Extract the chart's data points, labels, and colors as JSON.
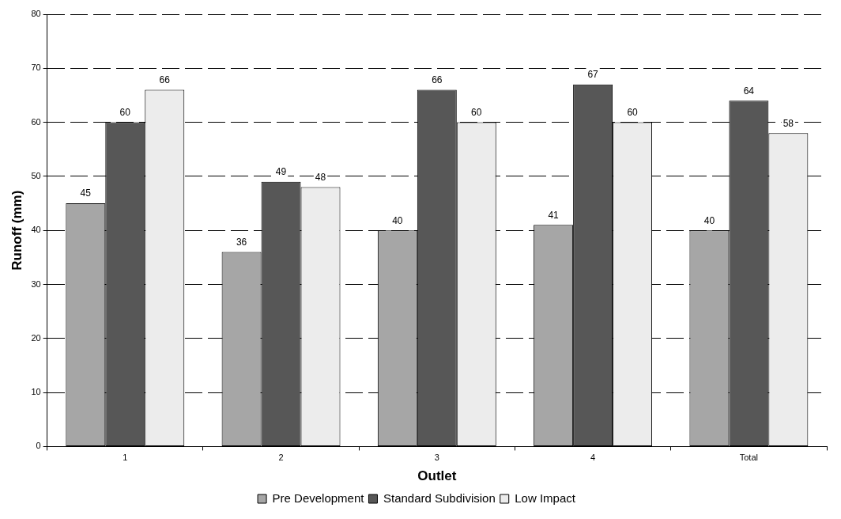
{
  "chart_data": {
    "type": "bar",
    "xlabel": "Outlet",
    "ylabel": "Runoff (mm)",
    "categories": [
      "1",
      "2",
      "3",
      "4",
      "Total"
    ],
    "series": [
      {
        "name": "Pre Development",
        "color": "#a6a6a6",
        "values": [
          45,
          36,
          40,
          41,
          40
        ]
      },
      {
        "name": "Standard Subdivision",
        "color": "#575757",
        "values": [
          60,
          49,
          66,
          67,
          64
        ]
      },
      {
        "name": "Low Impact",
        "color": "#ececec",
        "values": [
          66,
          48,
          60,
          60,
          58
        ]
      }
    ],
    "ylim": [
      0,
      80
    ],
    "yticks": [
      0,
      10,
      20,
      30,
      40,
      50,
      60,
      70,
      80
    ],
    "grid": "y",
    "legend": "bottom",
    "data_labels": true
  }
}
